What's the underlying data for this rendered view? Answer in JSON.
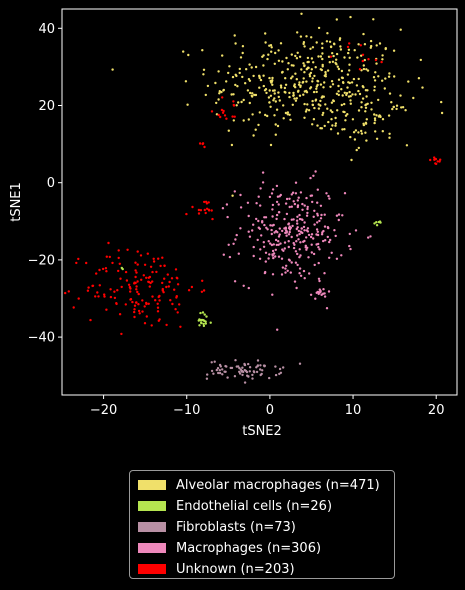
{
  "chart_data": {
    "type": "scatter",
    "title": "",
    "xlabel": "tSNE2",
    "ylabel": "tSNE1",
    "xlim": [
      -25,
      22.5
    ],
    "ylim": [
      -55,
      45
    ],
    "xticks": [
      -20,
      -10,
      0,
      10,
      20
    ],
    "yticks": [
      -40,
      -20,
      0,
      20,
      40
    ],
    "grid": false,
    "legend_position": "bottom, outside plot",
    "background": "#000000",
    "series": [
      {
        "name": "Alveolar macrophages (n=471)",
        "color": "#f0e06a",
        "count": 471,
        "clusters": [
          {
            "cx": 4.5,
            "cy": 26,
            "sx": 5.8,
            "sy": 7.0,
            "n": 420
          },
          {
            "cx": 12.5,
            "cy": 16,
            "sx": 2.2,
            "sy": 3.0,
            "n": 51
          }
        ]
      },
      {
        "name": "Endothelial cells (n=26)",
        "color": "#b5e550",
        "count": 26,
        "clusters": [
          {
            "cx": -8,
            "cy": -36,
            "sx": 0.5,
            "sy": 1.2,
            "n": 18
          },
          {
            "cx": 13,
            "cy": -10.5,
            "sx": 0.4,
            "sy": 0.3,
            "n": 6
          },
          {
            "cx": -17.5,
            "cy": -22.5,
            "sx": 0.3,
            "sy": 0.3,
            "n": 2
          }
        ]
      },
      {
        "name": "Fibroblasts (n=73)",
        "color": "#b890a4",
        "count": 73,
        "clusters": [
          {
            "cx": -3,
            "cy": -48.5,
            "sx": 2.2,
            "sy": 1.2,
            "n": 73
          }
        ]
      },
      {
        "name": "Macrophages (n=306)",
        "color": "#ee88bb",
        "count": 306,
        "clusters": [
          {
            "cx": 2.5,
            "cy": -13,
            "sx": 3.2,
            "sy": 6.5,
            "n": 290
          },
          {
            "cx": 6,
            "cy": -28.5,
            "sx": 0.5,
            "sy": 0.5,
            "n": 16
          }
        ]
      },
      {
        "name": "Unknown (n=203)",
        "color": "#ff0000",
        "count": 203,
        "clusters": [
          {
            "cx": -15.5,
            "cy": -27,
            "sx": 3.3,
            "sy": 5.5,
            "n": 150
          },
          {
            "cx": -8,
            "cy": -7,
            "sx": 1.0,
            "sy": 1.5,
            "n": 15
          },
          {
            "cx": 20,
            "cy": 5.5,
            "sx": 0.5,
            "sy": 0.5,
            "n": 10
          },
          {
            "cx": -5,
            "cy": 19,
            "sx": 1.2,
            "sy": 1.5,
            "n": 14
          },
          {
            "cx": -8,
            "cy": 10,
            "sx": 0.3,
            "sy": 0.5,
            "n": 4
          },
          {
            "cx": 11,
            "cy": 33,
            "sx": 1.5,
            "sy": 2.0,
            "n": 10
          }
        ]
      }
    ]
  }
}
